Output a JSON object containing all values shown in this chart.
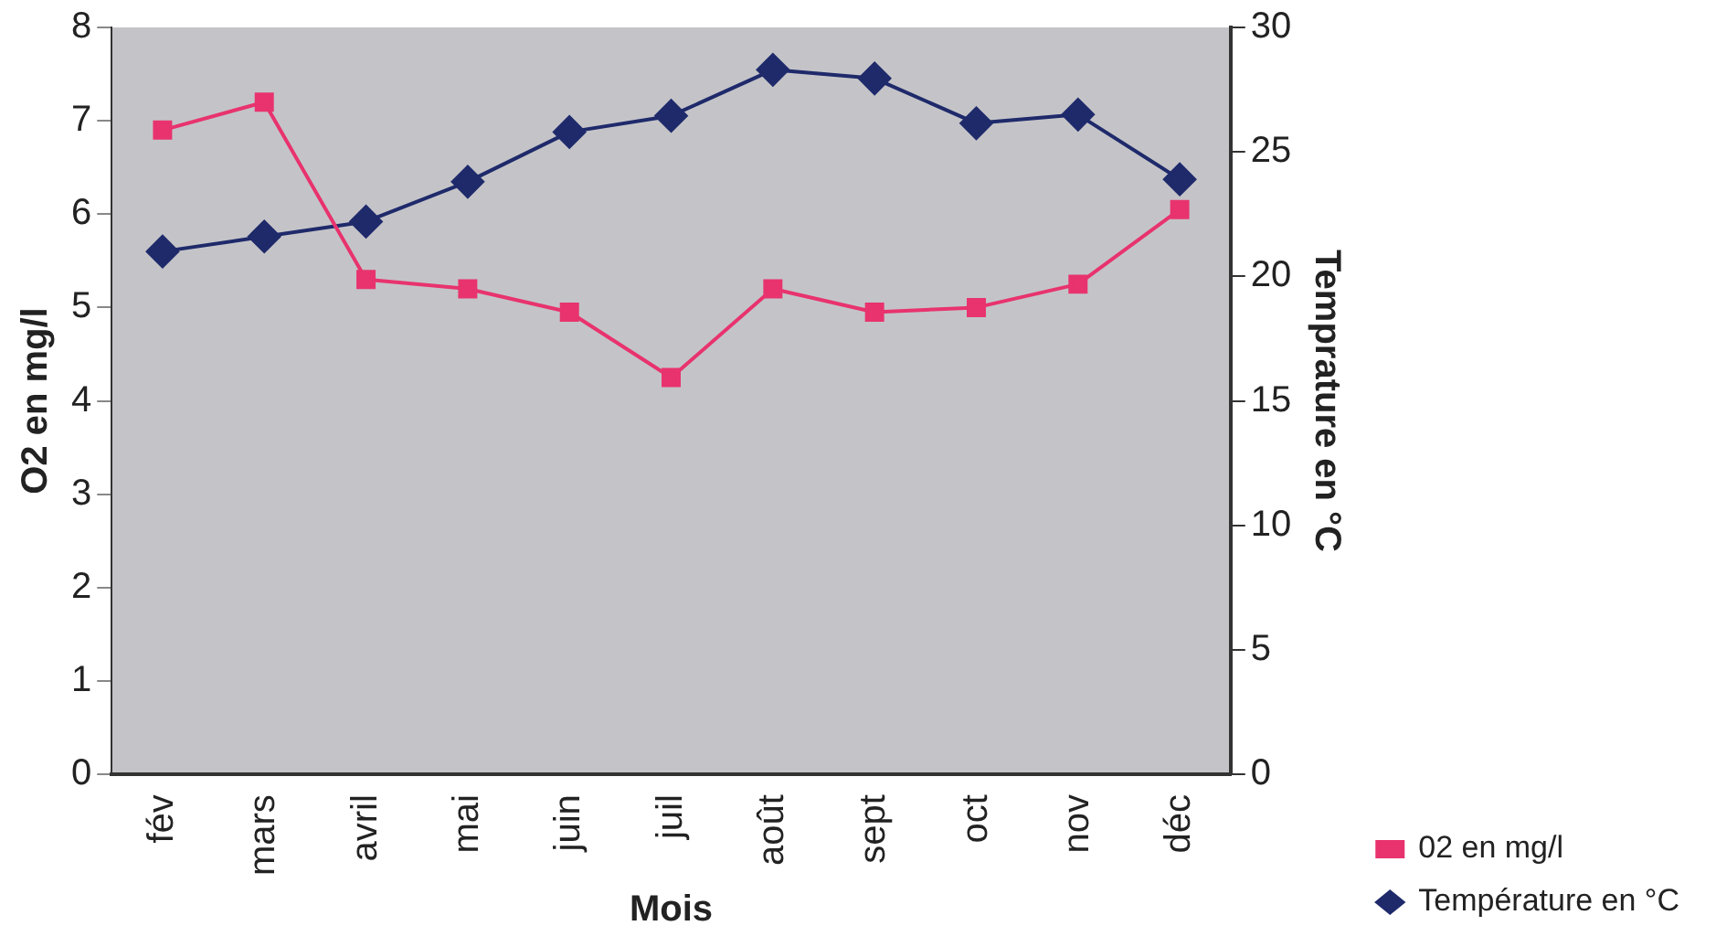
{
  "chart_data": {
    "type": "line",
    "xlabel": "Mois",
    "ylabel": "O2 en mg/l",
    "y2label": "Temprature en °C",
    "categories": [
      "fév",
      "mars",
      "avril",
      "mai",
      "juin",
      "juil",
      "août",
      "sept",
      "oct",
      "nov",
      "déc"
    ],
    "series": [
      {
        "name": "02 en mg/l",
        "color": "#e8336e",
        "marker": "square",
        "values": [
          6.9,
          7.2,
          5.3,
          5.2,
          4.95,
          4.25,
          5.2,
          4.95,
          5.0,
          5.25,
          6.05
        ]
      },
      {
        "name": "Température en °C",
        "color": "#1f2a6b",
        "marker": "diamond",
        "axis": "y2",
        "values": [
          21,
          21.6,
          22.2,
          23.8,
          25.8,
          26.45,
          28.3,
          27.95,
          26.15,
          26.5,
          23.9
        ]
      }
    ],
    "ylim": [
      0,
      8
    ],
    "yticks": [
      0,
      1,
      2,
      3,
      4,
      5,
      6,
      7,
      8
    ],
    "y2lim": [
      0,
      30
    ],
    "y2ticks": [
      0,
      5,
      10,
      15,
      20,
      25,
      30
    ],
    "grid": false,
    "legend": "bottom right",
    "line_style": "solid"
  }
}
